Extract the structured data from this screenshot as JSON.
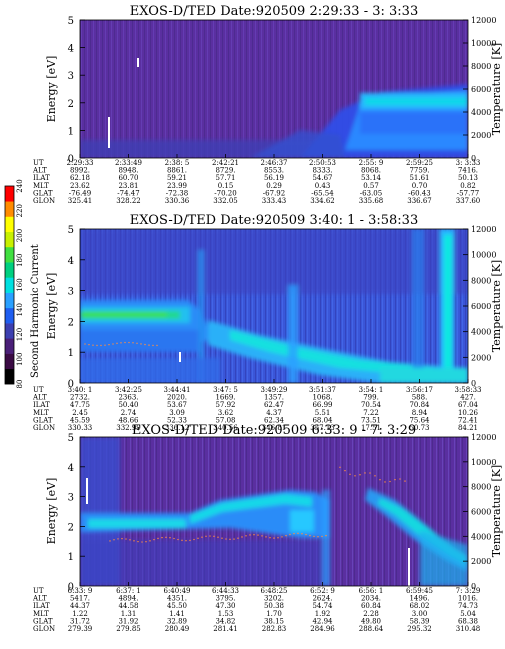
{
  "colorbar": {
    "label": "Second Harmonic Current",
    "ticks": [
      "80",
      "100",
      "120",
      "140",
      "160",
      "180",
      "200",
      "220",
      "240"
    ],
    "colors": [
      "#000000",
      "#3a0a44",
      "#4a1f78",
      "#3c3fb0",
      "#1f5ef0",
      "#2aa0ff",
      "#00e0e0",
      "#00d080",
      "#40e040",
      "#c8f000",
      "#ffff00",
      "#ff8c00",
      "#ff0000"
    ]
  },
  "chart_data": [
    {
      "type": "heatmap",
      "title": "EXOS-D/TED  Date:920509  2:29:33 - 3: 3:33",
      "ylabel": "Energy [eV]",
      "ylabel_right": "Temperature [K]",
      "ylim": [
        0,
        5
      ],
      "ylim_right": [
        0,
        12000
      ],
      "y_ticks": [
        "0",
        "1",
        "2",
        "3",
        "4",
        "5"
      ],
      "y_ticks_right": [
        "0",
        "2000",
        "4000",
        "6000",
        "8000",
        "10000",
        "12000"
      ],
      "table": {
        "row_labels": [
          "UT",
          "ALT",
          "ILAT",
          "MLT",
          "GLAT",
          "GLON"
        ],
        "columns": [
          [
            "2:29:33",
            "8992.",
            "62.18",
            "23.62",
            "-76.49",
            "325.41"
          ],
          [
            "2:33:49",
            "8948.",
            "60.70",
            "23.81",
            "-74.47",
            "328.22"
          ],
          [
            "2:38: 5",
            "8861.",
            "59.21",
            "23.99",
            "-72.38",
            "330.36"
          ],
          [
            "2:42:21",
            "8729.",
            "57.71",
            "0.15",
            "-70.20",
            "332.05"
          ],
          [
            "2:46:37",
            "8553.",
            "56.19",
            "0.29",
            "-67.92",
            "333.43"
          ],
          [
            "2:50:53",
            "8333.",
            "54.67",
            "0.43",
            "-65.54",
            "334.62"
          ],
          [
            "2:55: 9",
            "8068.",
            "53.14",
            "0.57",
            "-63.05",
            "335.68"
          ],
          [
            "2:59:25",
            "7759.",
            "51.61",
            "0.70",
            "-60.43",
            "336.67"
          ],
          [
            "3: 3:33",
            "7416.",
            "50.13",
            "0.82",
            "-57.77",
            "337.60"
          ]
        ]
      }
    },
    {
      "type": "heatmap",
      "title": "EXOS-D/TED  Date:920509  3:40: 1 - 3:58:33",
      "ylabel": "Energy [eV]",
      "ylabel_right": "Temperature [K]",
      "ylim": [
        0,
        5
      ],
      "ylim_right": [
        0,
        12000
      ],
      "y_ticks": [
        "0",
        "1",
        "2",
        "3",
        "4",
        "5"
      ],
      "y_ticks_right": [
        "0",
        "2000",
        "4000",
        "6000",
        "8000",
        "10000",
        "12000"
      ],
      "table": {
        "row_labels": [
          "UT",
          "ALT",
          "ILAT",
          "MLT",
          "GLAT",
          "GLON"
        ],
        "columns": [
          [
            "3:40: 1",
            "2732.",
            "47.75",
            "2.45",
            "45.59",
            "330.33"
          ],
          [
            "3:42:25",
            "2363.",
            "50.40",
            "2.74",
            "48.66",
            "332.99"
          ],
          [
            "3:44:41",
            "2020.",
            "53.67",
            "3.09",
            "52.33",
            "336.12"
          ],
          [
            "3:47: 5",
            "1669.",
            "57.92",
            "3.62",
            "57.08",
            "340.56"
          ],
          [
            "3:49:29",
            "1357.",
            "62.47",
            "4.37",
            "62.34",
            "346.81"
          ],
          [
            "3:51:37",
            "1068.",
            "66.99",
            "5.51",
            "68.04",
            "357.13"
          ],
          [
            "3:54: 1",
            "799.",
            "70.54",
            "7.22",
            "73.51",
            "17.51"
          ],
          [
            "3:56:17",
            "588.",
            "70.84",
            "8.94",
            "75.64",
            "50.73"
          ],
          [
            "3:58:33",
            "427.",
            "67.04",
            "10.26",
            "72.41",
            "84.21"
          ]
        ]
      }
    },
    {
      "type": "heatmap",
      "title": "EXOS-D/TED  Date:920509  6:33: 9 - 7: 3:29",
      "ylabel": "Energy [eV]",
      "ylabel_right": "Temperature [K]",
      "ylim": [
        0,
        5
      ],
      "ylim_right": [
        0,
        12000
      ],
      "y_ticks": [
        "0",
        "1",
        "2",
        "3",
        "4",
        "5"
      ],
      "y_ticks_right": [
        "0",
        "2000",
        "4000",
        "6000",
        "8000",
        "10000",
        "12000"
      ],
      "table": {
        "row_labels": [
          "UT",
          "ALT",
          "ILAT",
          "MLT",
          "GLAT",
          "GLON"
        ],
        "columns": [
          [
            "6:33: 9",
            "5417.",
            "44.37",
            "1.22",
            "31.72",
            "279.39"
          ],
          [
            "6:37: 1",
            "4894.",
            "44.58",
            "1.31",
            "31.92",
            "279.85"
          ],
          [
            "6:40:49",
            "4351.",
            "45.50",
            "1.41",
            "32.89",
            "280.49"
          ],
          [
            "6:44:33",
            "3795.",
            "47.30",
            "1.53",
            "34.82",
            "281.41"
          ],
          [
            "6:48:25",
            "3202.",
            "50.38",
            "1.70",
            "38.15",
            "282.83"
          ],
          [
            "6:52: 9",
            "2624.",
            "54.74",
            "1.92",
            "42.94",
            "284.96"
          ],
          [
            "6:56: 1",
            "2034.",
            "60.84",
            "2.28",
            "49.80",
            "288.64"
          ],
          [
            "6:59:45",
            "1496.",
            "68.02",
            "3.00",
            "58.39",
            "295.32"
          ],
          [
            "7: 3:29",
            "1016.",
            "74.73",
            "5.04",
            "68.38",
            "310.48"
          ]
        ]
      }
    }
  ]
}
